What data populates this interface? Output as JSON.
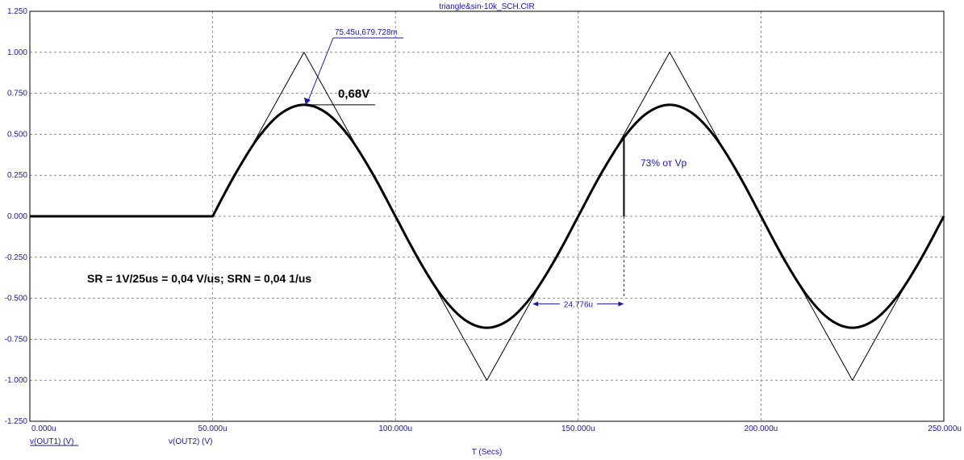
{
  "window": {
    "title": "triangle&sin-10k_SCH.CIR"
  },
  "colors": {
    "axis_text": "#1a1a9a",
    "grid": "#8a8a8a",
    "trace": "#000000",
    "annotation": "#1a1a9a"
  },
  "chart_data": {
    "type": "line",
    "title": "triangle&sin-10k_SCH.CIR",
    "xlabel": "T (Secs)",
    "ylabel": "",
    "xlim": [
      0,
      250
    ],
    "ylim": [
      -1.25,
      1.25
    ],
    "grid": true,
    "x_tick_labels": [
      "0.000u",
      "50.000u",
      "100.000u",
      "150.000u",
      "200.000u",
      "250.000u"
    ],
    "x_tick_values": [
      0,
      50,
      100,
      150,
      200,
      250
    ],
    "y_tick_labels": [
      "1.250",
      "1.000",
      "0.750",
      "0.500",
      "0.250",
      "0.000",
      "-0.250",
      "-0.500",
      "-0.750",
      "-1.000",
      "-1.250"
    ],
    "y_tick_values": [
      1.25,
      1.0,
      0.75,
      0.5,
      0.25,
      0.0,
      -0.25,
      -0.5,
      -0.75,
      -1.0,
      -1.25
    ],
    "series": [
      {
        "name": "v(OUT1) (V)",
        "style": "thin",
        "x": [
          0,
          50,
          75,
          125,
          175,
          225,
          250
        ],
        "y": [
          0,
          0,
          1.0,
          -1.0,
          1.0,
          -1.0,
          0
        ]
      },
      {
        "name": "v(OUT2) (V)",
        "style": "thick",
        "x": [
          0,
          50,
          56.25,
          62.5,
          68.75,
          75,
          81.25,
          87.5,
          93.75,
          100,
          106.25,
          112.5,
          118.75,
          125,
          131.25,
          137.5,
          143.75,
          150,
          156.25,
          162.5,
          168.75,
          175,
          181.25,
          187.5,
          193.75,
          200,
          206.25,
          212.5,
          218.75,
          225,
          231.25,
          237.5,
          243.75,
          250
        ],
        "y": [
          0,
          0,
          0.26,
          0.481,
          0.628,
          0.68,
          0.628,
          0.481,
          0.26,
          0,
          -0.26,
          -0.481,
          -0.628,
          -0.68,
          -0.628,
          -0.481,
          -0.26,
          0,
          0.26,
          0.481,
          0.628,
          0.68,
          0.628,
          0.481,
          0.26,
          0,
          -0.26,
          -0.481,
          -0.628,
          -0.68,
          -0.628,
          -0.481,
          -0.26,
          0
        ]
      }
    ],
    "annotations": {
      "cursor_readout": {
        "text": "75.45u,679.728m",
        "x": 75.45,
        "y": 0.679728
      },
      "peak_label": {
        "text": "0,68V"
      },
      "percent_label": {
        "text": "73% от Vp",
        "x": 162.5,
        "y_from": 0,
        "y_to": 0.497
      },
      "delta_label": {
        "text": "24.776u",
        "x_from": 137.5,
        "x_to": 162.5,
        "y": -0.5
      },
      "slew_rate": {
        "text": "SR = 1V/25us = 0,04 V/us;   SRN = 0,04  1/us"
      }
    }
  }
}
